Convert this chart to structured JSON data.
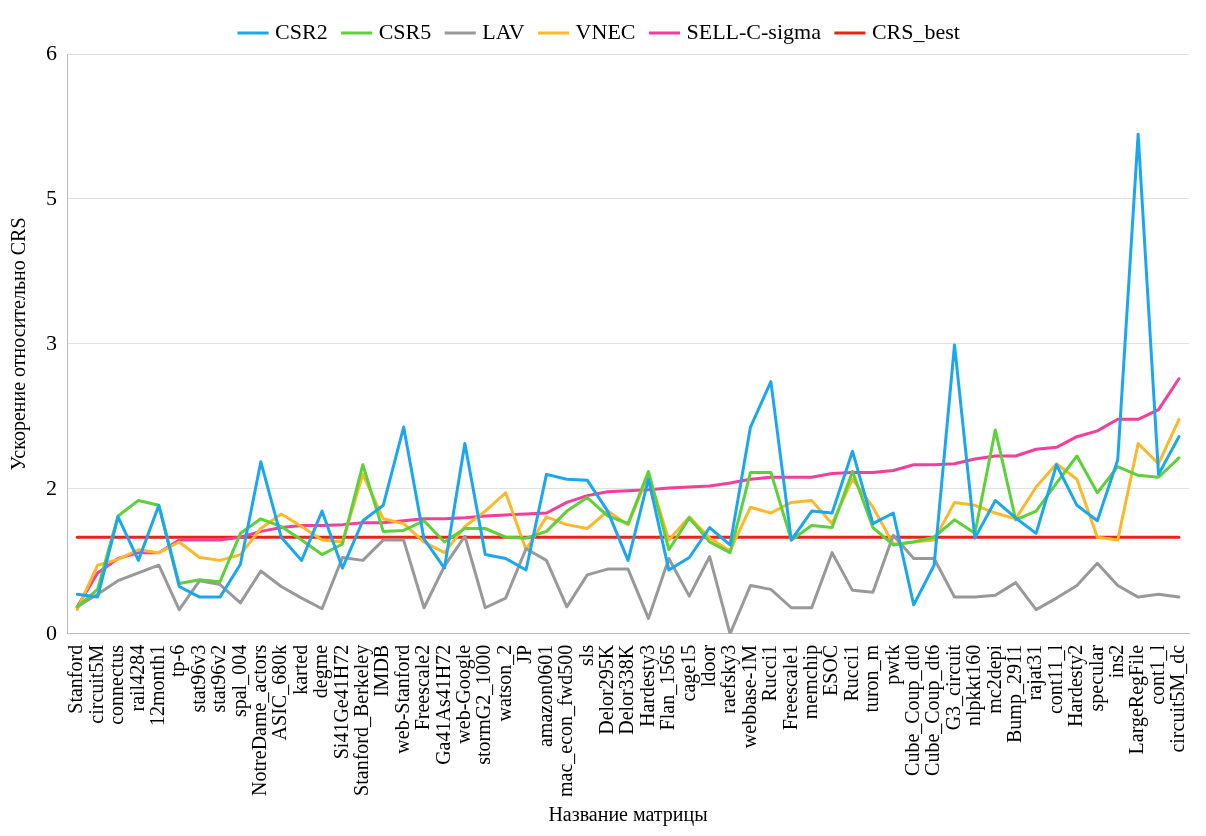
{
  "chart_data": {
    "type": "line",
    "xlabel": "Название матрицы",
    "ylabel": "Ускорение относительно CRS",
    "categories": [
      "Stanford",
      "circuit5M",
      "connectus",
      "rail4284",
      "12month1",
      "tp-6",
      "stat96v3",
      "stat96v2",
      "spal_004",
      "NotreDame_actors",
      "ASIC_680k",
      "karted",
      "degme",
      "Si41Ge41H72",
      "Stanford_Berkeley",
      "IMDB",
      "web-Stanford",
      "Freescale2",
      "Ga41As41H72",
      "web-Google",
      "stormG2_1000",
      "watson_2",
      "JP",
      "amazon0601",
      "mac_econ_fwd500",
      "sls",
      "Delor295K",
      "Delor338K",
      "Hardesty3",
      "Flan_1565",
      "cage15",
      "ldoor",
      "raefsky3",
      "webbase-1M",
      "Rucci1",
      "Freescale1",
      "memchip",
      "ESOC",
      "Rucci1",
      "turon_m",
      "pwtk",
      "Cube_Coup_dt0",
      "Cube_Coup_dt6",
      "G3_circuit",
      "nlpkkt160",
      "mc2depi",
      "Bump_2911",
      "rajat31",
      "cont11_l",
      "Hardesty2",
      "specular",
      "ins2",
      "LargeRegFile",
      "cont1_l",
      "circuit5M_dc"
    ],
    "series": [
      {
        "name": "CSR2",
        "color": "#1aa7f0",
        "values": [
          0.41,
          0.38,
          1.21,
          0.76,
          1.33,
          0.49,
          0.38,
          0.38,
          0.72,
          1.78,
          1.0,
          0.76,
          1.27,
          0.68,
          1.17,
          1.33,
          2.14,
          0.98,
          0.68,
          1.97,
          0.82,
          0.78,
          0.66,
          1.65,
          1.6,
          1.59,
          1.27,
          0.76,
          1.6,
          0.66,
          0.79,
          1.1,
          0.92,
          2.14,
          2.61,
          0.97,
          1.27,
          1.25,
          1.89,
          1.14,
          1.25,
          0.3,
          0.71,
          2.99,
          0.99,
          1.38,
          1.2,
          1.04,
          1.75,
          1.33,
          1.17,
          1.8,
          5.17,
          1.65,
          2.04
        ]
      },
      {
        "name": "CSR5",
        "color": "#5cd13a",
        "values": [
          0.28,
          0.46,
          1.22,
          1.38,
          1.33,
          0.52,
          0.56,
          0.54,
          1.04,
          1.19,
          1.11,
          0.97,
          0.82,
          0.93,
          1.75,
          1.06,
          1.07,
          1.17,
          0.95,
          1.09,
          1.09,
          1.0,
          0.99,
          1.06,
          1.27,
          1.41,
          1.22,
          1.14,
          1.68,
          0.87,
          1.2,
          0.95,
          0.84,
          1.67,
          1.67,
          0.97,
          1.12,
          1.1,
          1.68,
          1.1,
          0.92,
          0.95,
          1.0,
          1.18,
          1.04,
          2.11,
          1.18,
          1.27,
          1.56,
          1.84,
          1.46,
          1.73,
          1.64,
          1.62,
          1.82
        ]
      },
      {
        "name": "LAV",
        "color": "#999999",
        "values": [
          0.28,
          0.41,
          0.55,
          0.63,
          0.71,
          0.25,
          0.55,
          0.51,
          0.32,
          0.65,
          0.49,
          0.37,
          0.26,
          0.79,
          0.76,
          0.97,
          0.97,
          0.27,
          0.7,
          1.01,
          0.27,
          0.37,
          0.88,
          0.76,
          0.28,
          0.61,
          0.67,
          0.67,
          0.16,
          0.78,
          0.39,
          0.8,
          0,
          0.5,
          0.46,
          0.27,
          0.27,
          0.84,
          0.45,
          0.43,
          1.02,
          0.78,
          0.78,
          0.38,
          0.38,
          0.4,
          0.53,
          0.25,
          0.37,
          0.5,
          0.73,
          0.5,
          0.38,
          0.41,
          0.38
        ]
      },
      {
        "name": "VNEC",
        "color": "#fbb829",
        "values": [
          0.25,
          0.71,
          0.77,
          0.87,
          0.84,
          0.95,
          0.79,
          0.76,
          0.82,
          1.09,
          1.24,
          1.11,
          0.97,
          0.95,
          1.65,
          1.19,
          1.14,
          0.95,
          0.84,
          1.11,
          1.27,
          1.46,
          0.87,
          1.21,
          1.13,
          1.09,
          1.27,
          1.13,
          1.65,
          0.97,
          1.21,
          0.99,
          0.86,
          1.31,
          1.25,
          1.36,
          1.38,
          1.14,
          1.6,
          1.31,
          0.93,
          0.95,
          0.97,
          1.36,
          1.33,
          1.25,
          1.19,
          1.52,
          1.76,
          1.6,
          1.0,
          0.97,
          1.97,
          1.76,
          2.22
        ]
      },
      {
        "name": "SELL-C-sigma",
        "color": "#f53d9a",
        "values": [
          0.28,
          0.63,
          0.78,
          0.84,
          0.84,
          0.97,
          0.97,
          0.97,
          1.0,
          1.06,
          1.1,
          1.12,
          1.12,
          1.13,
          1.15,
          1.15,
          1.17,
          1.19,
          1.19,
          1.2,
          1.22,
          1.23,
          1.24,
          1.25,
          1.36,
          1.43,
          1.47,
          1.48,
          1.49,
          1.51,
          1.52,
          1.53,
          1.56,
          1.6,
          1.62,
          1.62,
          1.62,
          1.66,
          1.67,
          1.67,
          1.69,
          1.75,
          1.75,
          1.76,
          1.81,
          1.84,
          1.84,
          1.91,
          1.93,
          2.04,
          2.1,
          2.22,
          2.22,
          2.32,
          2.64
        ]
      },
      {
        "name": "CRS_best",
        "color": "#e8231a",
        "values": [
          1,
          1,
          1,
          1,
          1,
          1,
          1,
          1,
          1,
          1,
          1,
          1,
          1,
          1,
          1,
          1,
          1,
          1,
          1,
          1,
          1,
          1,
          1,
          1,
          1,
          1,
          1,
          1,
          1,
          1,
          1,
          1,
          1,
          1,
          1,
          1,
          1,
          1,
          1,
          1,
          1,
          1,
          1,
          1,
          1,
          1,
          1,
          1,
          1,
          1,
          1,
          1,
          1,
          1,
          1
        ]
      }
    ],
    "ylim": [
      0,
      6
    ],
    "yticks": [
      0,
      {
        "value": 1.5,
        "label": "2"
      },
      3,
      {
        "value": 4.5,
        "label": "5"
      },
      6
    ],
    "grid": "y",
    "legend": "top",
    "marker": "none",
    "line_style": "solid"
  }
}
